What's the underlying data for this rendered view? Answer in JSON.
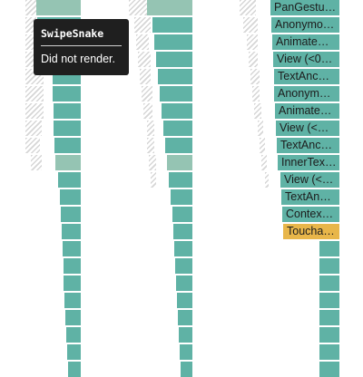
{
  "flamegraph": {
    "colors": {
      "rendered": "#5fb2a5",
      "rendered_dim": "#95c4b3",
      "selected": "#e8b64a",
      "did_not_render": "hatched-gray"
    },
    "nodes": [
      {
        "label": "PanGestu…",
        "state": "rendered"
      },
      {
        "label": "Anonymo…",
        "state": "rendered"
      },
      {
        "label": "Animate…",
        "state": "rendered"
      },
      {
        "label": "View (<0…",
        "state": "rendered"
      },
      {
        "label": "TextAnc…",
        "state": "rendered"
      },
      {
        "label": "Anonym…",
        "state": "rendered"
      },
      {
        "label": "Animate…",
        "state": "rendered"
      },
      {
        "label": "View (<…",
        "state": "rendered"
      },
      {
        "label": "TextAnc…",
        "state": "rendered"
      },
      {
        "label": "InnerTex…",
        "state": "rendered"
      },
      {
        "label": "View (<…",
        "state": "rendered"
      },
      {
        "label": "TextAn…",
        "state": "rendered"
      },
      {
        "label": "Contex…",
        "state": "rendered"
      },
      {
        "label": "Toucha…",
        "state": "selected"
      }
    ]
  },
  "tooltip": {
    "title": "SwipeSnake",
    "message": "Did not render."
  }
}
